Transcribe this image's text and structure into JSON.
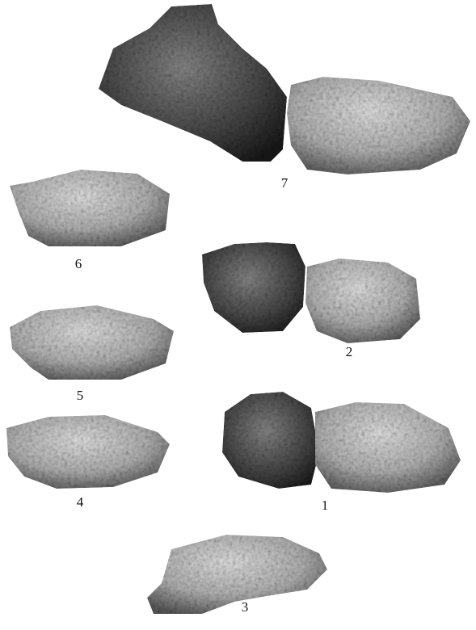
{
  "figures": [
    {
      "label": "7"
    },
    {
      "label": "6"
    },
    {
      "label": "2"
    },
    {
      "label": "5"
    },
    {
      "label": "4"
    },
    {
      "label": "1"
    },
    {
      "label": "3"
    }
  ]
}
